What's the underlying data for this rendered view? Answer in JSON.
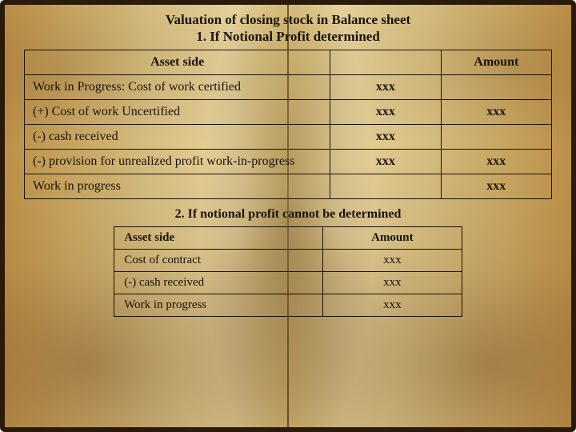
{
  "title": "Valuation of closing stock in Balance sheet",
  "section1": {
    "heading": "1. If Notional Profit determined",
    "headers": {
      "asset": "Asset side",
      "amount": "Amount"
    },
    "rows": [
      {
        "desc": "Work in Progress: Cost of work certified",
        "amt1": "xxx",
        "amt2": ""
      },
      {
        "desc": "(+) Cost of work Uncertified",
        "amt1": "xxx",
        "amt2": "xxx"
      },
      {
        "desc": "(-) cash received",
        "amt1": "xxx",
        "amt2": ""
      },
      {
        "desc": "(-) provision for unrealized profit work-in-progress",
        "amt1": "xxx",
        "amt2": "xxx"
      },
      {
        "desc": "Work in progress",
        "amt1": "",
        "amt2": "xxx"
      }
    ]
  },
  "section2": {
    "heading": "2. If notional profit cannot be determined",
    "headers": {
      "asset": "Asset side",
      "amount": "Amount"
    },
    "rows": [
      {
        "desc": "Cost of contract",
        "amt": "xxx"
      },
      {
        "desc": "(-) cash received",
        "amt": "xxx"
      },
      {
        "desc": "Work in progress",
        "amt": "xxx"
      }
    ]
  },
  "style": {
    "text_color": "#1a1208",
    "border_color": "#1a1208",
    "title_fontsize": 17,
    "table1_fontsize": 16,
    "table2_fontsize": 15,
    "book_edge_color": "#2a1a0a",
    "page_gradient": [
      "#d4a755",
      "#e8c97a",
      "#f2dd9a",
      "#f6e5ac",
      "#eed688"
    ]
  }
}
